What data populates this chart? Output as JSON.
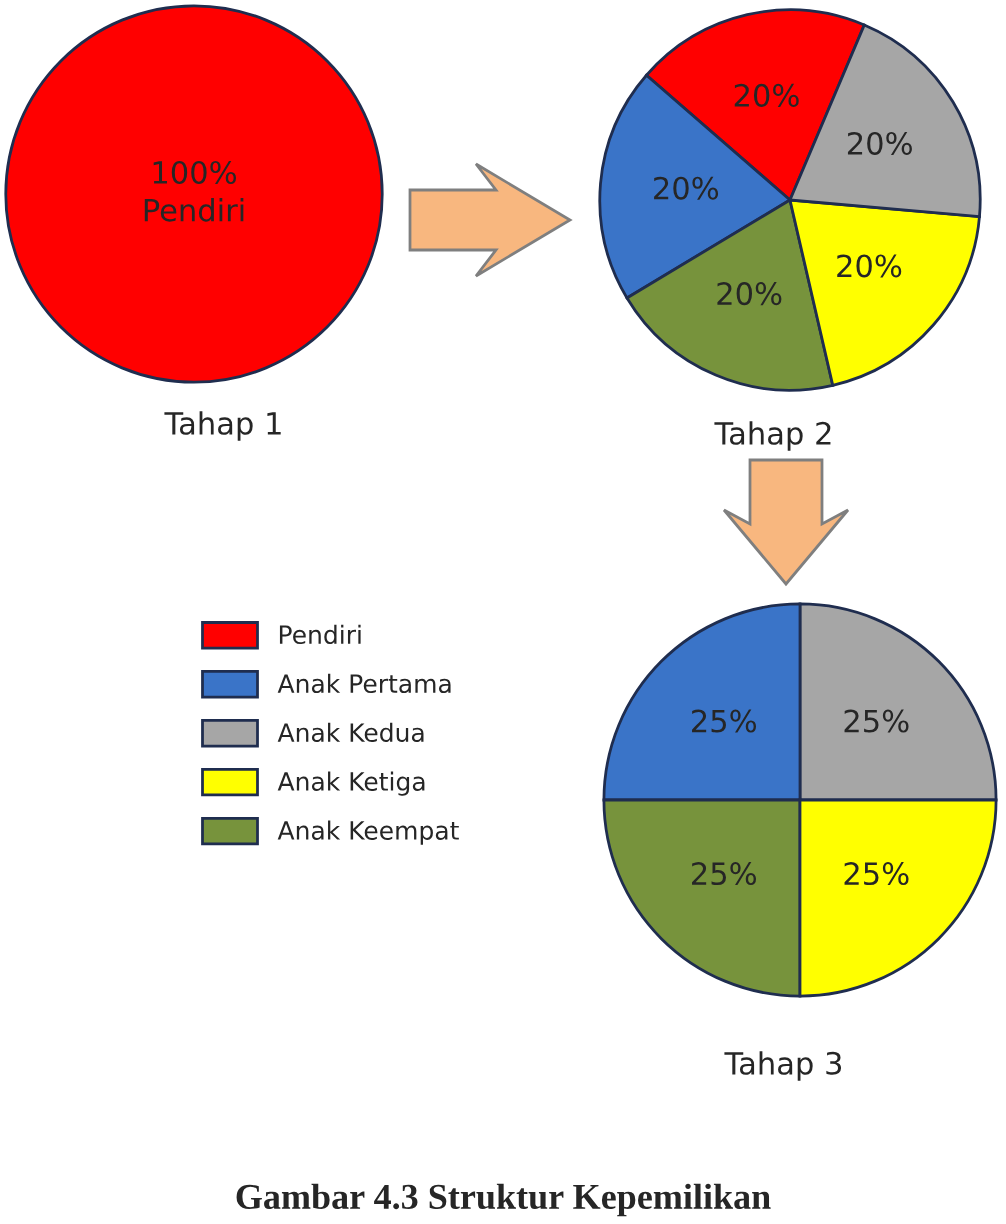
{
  "chart_data": [
    {
      "type": "pie",
      "xlabel": "Tahap 1",
      "categories": [
        "Pendiri"
      ],
      "values": [
        100
      ],
      "colors": [
        "#ff0000"
      ],
      "value_labels": [
        "100%"
      ]
    },
    {
      "type": "pie",
      "xlabel": "Tahap 2",
      "legend": "left",
      "categories": [
        "Pendiri",
        "Anak Pertama",
        "Anak Kedua",
        "Anak Ketiga",
        "Anak Keempat"
      ],
      "values": [
        20,
        20,
        20,
        20,
        20
      ],
      "colors": [
        "#ff0000",
        "#3a74c8",
        "#a6a6a6",
        "#ffff00",
        "#77933c"
      ],
      "value_labels": [
        "20%",
        "20%",
        "20%",
        "20%",
        "20%"
      ]
    },
    {
      "type": "pie",
      "xlabel": "Tahap 3",
      "categories": [
        null,
        null,
        null,
        null
      ],
      "values": [
        25,
        25,
        25,
        25
      ],
      "colors": [
        "#a6a6a6",
        "#3a74c8",
        "#77933c",
        "#ffff00"
      ],
      "value_labels": [
        "25%",
        "25%",
        "25%",
        "25%"
      ],
      "annotations": [
        "Gambar 4.3 Struktur Kepemilikan"
      ]
    }
  ]
}
